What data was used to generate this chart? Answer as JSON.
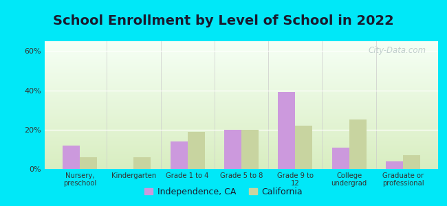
{
  "title": "School Enrollment by Level of School in 2022",
  "categories": [
    "Nursery,\npreschool",
    "Kindergarten",
    "Grade 1 to 4",
    "Grade 5 to 8",
    "Grade 9 to\n12",
    "College\nundergrad",
    "Graduate or\nprofessional"
  ],
  "independence_values": [
    12,
    0,
    14,
    20,
    39,
    11,
    4
  ],
  "california_values": [
    6,
    6,
    19,
    20,
    22,
    25,
    7
  ],
  "independence_color": "#cc99dd",
  "california_color": "#c8d4a0",
  "ylim": [
    0,
    65
  ],
  "yticks": [
    0,
    20,
    40,
    60
  ],
  "ytick_labels": [
    "0%",
    "20%",
    "40%",
    "60%"
  ],
  "background_outer": "#00e8f8",
  "background_inner_top": "#f5fff5",
  "background_inner_bottom": "#d8edc0",
  "title_fontsize": 14,
  "legend_labels": [
    "Independence, CA",
    "California"
  ],
  "watermark": "City-Data.com",
  "bar_width": 0.32,
  "title_color": "#1a1a2e"
}
